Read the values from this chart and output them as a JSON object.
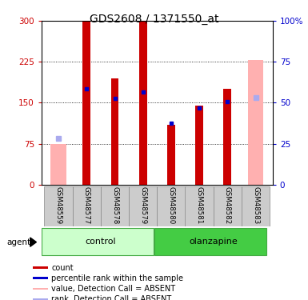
{
  "title": "GDS2608 / 1371550_at",
  "samples": [
    "GSM48559",
    "GSM48577",
    "GSM48578",
    "GSM48579",
    "GSM48580",
    "GSM48581",
    "GSM48582",
    "GSM48583"
  ],
  "red_values": [
    0,
    300,
    195,
    300,
    110,
    145,
    175,
    0
  ],
  "blue_values": [
    0,
    175,
    158,
    170,
    112,
    140,
    152,
    0
  ],
  "pink_values": [
    75,
    0,
    0,
    0,
    0,
    0,
    0,
    228
  ],
  "light_blue_values": [
    85,
    0,
    0,
    0,
    0,
    0,
    0,
    160
  ],
  "absent_mask": [
    true,
    false,
    false,
    false,
    false,
    false,
    false,
    true
  ],
  "y_left_ticks": [
    0,
    75,
    150,
    225,
    300
  ],
  "y_right_labels": [
    "0",
    "25",
    "50",
    "75",
    "100%"
  ],
  "red_color": "#cc0000",
  "blue_color": "#0000cc",
  "pink_color": "#ffb0b0",
  "light_blue_color": "#aaaaee",
  "control_light": "#ccffcc",
  "olanzapine_dark": "#44cc44",
  "title_fontsize": 10,
  "tick_fontsize": 7.5,
  "label_fontsize": 6.2,
  "group_fontsize": 8,
  "legend_fontsize": 7
}
